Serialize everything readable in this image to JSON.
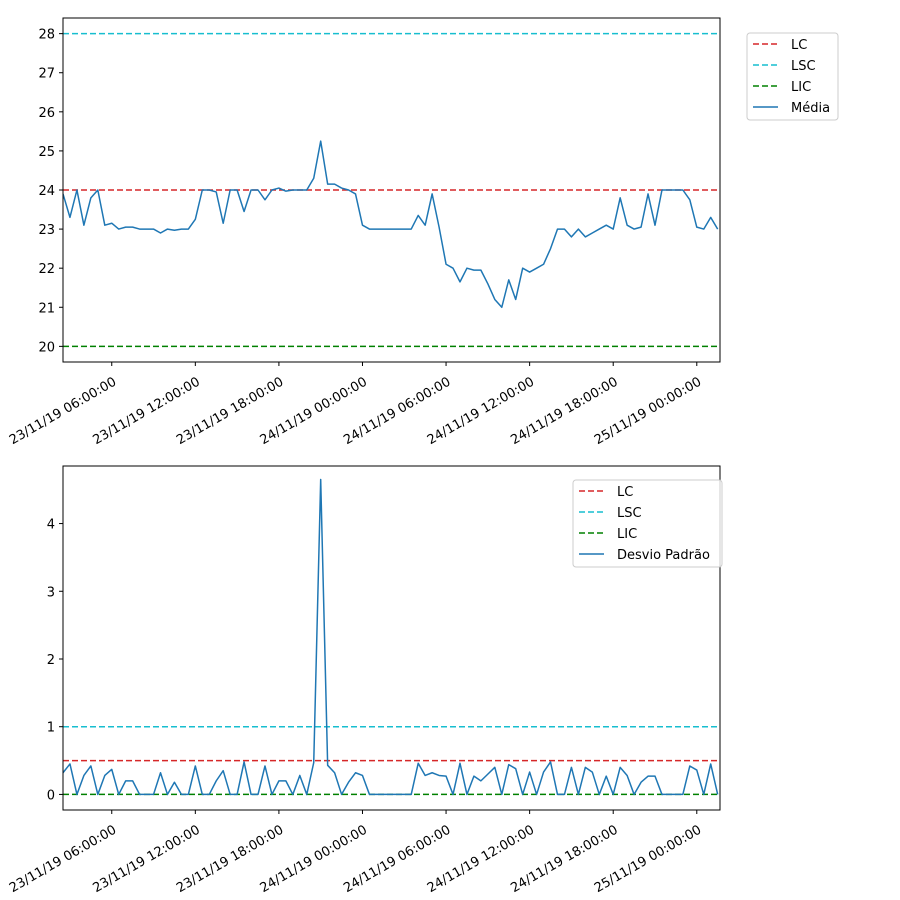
{
  "chart_data": [
    {
      "type": "line",
      "title": "",
      "xlabel": "",
      "ylabel": "",
      "x_range": [
        "23/11/19 02:30:00",
        "25/11/19 01:40:00"
      ],
      "ylim": [
        19.6,
        28.4
      ],
      "y_ticks": [
        20,
        21,
        22,
        23,
        24,
        25,
        26,
        27,
        28
      ],
      "x_tick_labels": [
        "23/11/19 06:00:00",
        "23/11/19 12:00:00",
        "23/11/19 18:00:00",
        "24/11/19 00:00:00",
        "24/11/19 06:00:00",
        "24/11/19 12:00:00",
        "24/11/19 18:00:00",
        "25/11/19 00:00:00"
      ],
      "legend_position": "outside-right-top",
      "hlines": [
        {
          "name": "LC",
          "value": 24,
          "color": "#d62728"
        },
        {
          "name": "LSC",
          "value": 28,
          "color": "#17becf"
        },
        {
          "name": "LIC",
          "value": 20,
          "color": "#008000"
        }
      ],
      "series": [
        {
          "name": "Média",
          "color": "#1f77b4",
          "x": [
            "23/11/19 02:30:00",
            "23/11/19 03:00:00",
            "23/11/19 03:30:00",
            "23/11/19 04:00:00",
            "23/11/19 04:30:00",
            "23/11/19 05:00:00",
            "23/11/19 05:30:00",
            "23/11/19 06:00:00",
            "23/11/19 06:30:00",
            "23/11/19 07:00:00",
            "23/11/19 07:30:00",
            "23/11/19 08:00:00",
            "23/11/19 08:30:00",
            "23/11/19 09:00:00",
            "23/11/19 09:30:00",
            "23/11/19 10:00:00",
            "23/11/19 10:30:00",
            "23/11/19 11:00:00",
            "23/11/19 11:30:00",
            "23/11/19 12:00:00",
            "23/11/19 12:30:00",
            "23/11/19 13:00:00",
            "23/11/19 13:30:00",
            "23/11/19 14:00:00",
            "23/11/19 14:30:00",
            "23/11/19 15:00:00",
            "23/11/19 15:30:00",
            "23/11/19 16:00:00",
            "23/11/19 16:30:00",
            "23/11/19 17:00:00",
            "23/11/19 17:30:00",
            "23/11/19 18:00:00",
            "23/11/19 18:30:00",
            "23/11/19 19:00:00",
            "23/11/19 19:30:00",
            "23/11/19 20:00:00",
            "23/11/19 20:30:00",
            "23/11/19 21:00:00",
            "23/11/19 21:30:00",
            "23/11/19 22:00:00",
            "23/11/19 22:30:00",
            "23/11/19 23:00:00",
            "23/11/19 23:30:00",
            "24/11/19 00:00:00",
            "24/11/19 00:30:00",
            "24/11/19 01:00:00",
            "24/11/19 01:30:00",
            "24/11/19 02:00:00",
            "24/11/19 02:30:00",
            "24/11/19 03:00:00",
            "24/11/19 03:30:00",
            "24/11/19 04:00:00",
            "24/11/19 04:30:00",
            "24/11/19 05:00:00",
            "24/11/19 05:30:00",
            "24/11/19 06:00:00",
            "24/11/19 06:30:00",
            "24/11/19 07:00:00",
            "24/11/19 07:30:00",
            "24/11/19 08:00:00",
            "24/11/19 08:30:00",
            "24/11/19 09:00:00",
            "24/11/19 09:30:00",
            "24/11/19 10:00:00",
            "24/11/19 10:30:00",
            "24/11/19 11:00:00",
            "24/11/19 11:30:00",
            "24/11/19 12:00:00",
            "24/11/19 12:30:00",
            "24/11/19 13:00:00",
            "24/11/19 13:30:00",
            "24/11/19 14:00:00",
            "24/11/19 14:30:00",
            "24/11/19 15:00:00",
            "24/11/19 15:30:00",
            "24/11/19 16:00:00",
            "24/11/19 16:30:00",
            "24/11/19 17:00:00",
            "24/11/19 17:30:00",
            "24/11/19 18:00:00",
            "24/11/19 18:30:00",
            "24/11/19 19:00:00",
            "24/11/19 19:30:00",
            "24/11/19 20:00:00",
            "24/11/19 20:30:00",
            "24/11/19 21:00:00",
            "24/11/19 21:30:00",
            "24/11/19 22:00:00",
            "24/11/19 22:30:00",
            "24/11/19 23:00:00",
            "24/11/19 23:30:00",
            "25/11/19 00:00:00",
            "25/11/19 00:30:00",
            "25/11/19 01:00:00",
            "25/11/19 01:30:00"
          ],
          "values": [
            23.9,
            23.3,
            24.0,
            23.1,
            23.8,
            24.0,
            23.1,
            23.15,
            23.0,
            23.05,
            23.05,
            23.0,
            23.0,
            23.0,
            22.9,
            23.0,
            22.97,
            23.0,
            23.0,
            23.25,
            24.0,
            24.0,
            23.95,
            23.15,
            24.0,
            24.0,
            23.45,
            24.0,
            24.0,
            23.75,
            24.0,
            24.05,
            23.97,
            24.0,
            24.0,
            24.0,
            24.3,
            25.25,
            24.15,
            24.15,
            24.05,
            24.0,
            23.9,
            23.1,
            23.0,
            23.0,
            23.0,
            23.0,
            23.0,
            23.0,
            23.0,
            23.35,
            23.1,
            23.9,
            23.05,
            22.1,
            22.0,
            21.65,
            22.0,
            21.95,
            21.95,
            21.6,
            21.2,
            21.0,
            21.7,
            21.2,
            22.0,
            21.9,
            22.0,
            22.1,
            22.5,
            23.0,
            23.0,
            22.8,
            23.0,
            22.8,
            22.9,
            23.0,
            23.1,
            23.0,
            23.8,
            23.1,
            23.0,
            23.05,
            23.9,
            23.1,
            24.0,
            24.0,
            24.0,
            24.0,
            23.75,
            23.05,
            23.0,
            23.3,
            23.0
          ]
        }
      ]
    },
    {
      "type": "line",
      "title": "",
      "xlabel": "",
      "ylabel": "",
      "x_range": [
        "23/11/19 02:30:00",
        "25/11/19 01:40:00"
      ],
      "ylim": [
        -0.23,
        4.85
      ],
      "y_ticks": [
        0,
        1,
        2,
        3,
        4
      ],
      "x_tick_labels": [
        "23/11/19 06:00:00",
        "23/11/19 12:00:00",
        "23/11/19 18:00:00",
        "24/11/19 00:00:00",
        "24/11/19 06:00:00",
        "24/11/19 12:00:00",
        "24/11/19 18:00:00",
        "25/11/19 00:00:00"
      ],
      "legend_position": "top-right",
      "hlines": [
        {
          "name": "LC",
          "value": 0.5,
          "color": "#d62728"
        },
        {
          "name": "LSC",
          "value": 1.0,
          "color": "#17becf"
        },
        {
          "name": "LIC",
          "value": 0.0,
          "color": "#008000"
        }
      ],
      "series": [
        {
          "name": "Desvio Padrão",
          "color": "#1f77b4",
          "x": [
            "23/11/19 02:30:00",
            "23/11/19 03:00:00",
            "23/11/19 03:30:00",
            "23/11/19 04:00:00",
            "23/11/19 04:30:00",
            "23/11/19 05:00:00",
            "23/11/19 05:30:00",
            "23/11/19 06:00:00",
            "23/11/19 06:30:00",
            "23/11/19 07:00:00",
            "23/11/19 07:30:00",
            "23/11/19 08:00:00",
            "23/11/19 08:30:00",
            "23/11/19 09:00:00",
            "23/11/19 09:30:00",
            "23/11/19 10:00:00",
            "23/11/19 10:30:00",
            "23/11/19 11:00:00",
            "23/11/19 11:30:00",
            "23/11/19 12:00:00",
            "23/11/19 12:30:00",
            "23/11/19 13:00:00",
            "23/11/19 13:30:00",
            "23/11/19 14:00:00",
            "23/11/19 14:30:00",
            "23/11/19 15:00:00",
            "23/11/19 15:30:00",
            "23/11/19 16:00:00",
            "23/11/19 16:30:00",
            "23/11/19 17:00:00",
            "23/11/19 17:30:00",
            "23/11/19 18:00:00",
            "23/11/19 18:30:00",
            "23/11/19 19:00:00",
            "23/11/19 19:30:00",
            "23/11/19 20:00:00",
            "23/11/19 20:30:00",
            "23/11/19 21:00:00",
            "23/11/19 21:30:00",
            "23/11/19 22:00:00",
            "23/11/19 22:30:00",
            "23/11/19 23:00:00",
            "23/11/19 23:30:00",
            "24/11/19 00:00:00",
            "24/11/19 00:30:00",
            "24/11/19 01:00:00",
            "24/11/19 01:30:00",
            "24/11/19 02:00:00",
            "24/11/19 02:30:00",
            "24/11/19 03:00:00",
            "24/11/19 03:30:00",
            "24/11/19 04:00:00",
            "24/11/19 04:30:00",
            "24/11/19 05:00:00",
            "24/11/19 05:30:00",
            "24/11/19 06:00:00",
            "24/11/19 06:30:00",
            "24/11/19 07:00:00",
            "24/11/19 07:30:00",
            "24/11/19 08:00:00",
            "24/11/19 08:30:00",
            "24/11/19 09:00:00",
            "24/11/19 09:30:00",
            "24/11/19 10:00:00",
            "24/11/19 10:30:00",
            "24/11/19 11:00:00",
            "24/11/19 11:30:00",
            "24/11/19 12:00:00",
            "24/11/19 12:30:00",
            "24/11/19 13:00:00",
            "24/11/19 13:30:00",
            "24/11/19 14:00:00",
            "24/11/19 14:30:00",
            "24/11/19 15:00:00",
            "24/11/19 15:30:00",
            "24/11/19 16:00:00",
            "24/11/19 16:30:00",
            "24/11/19 17:00:00",
            "24/11/19 17:30:00",
            "24/11/19 18:00:00",
            "24/11/19 18:30:00",
            "24/11/19 19:00:00",
            "24/11/19 19:30:00",
            "24/11/19 20:00:00",
            "24/11/19 20:30:00",
            "24/11/19 21:00:00",
            "24/11/19 21:30:00",
            "24/11/19 22:00:00",
            "24/11/19 22:30:00",
            "24/11/19 23:00:00",
            "24/11/19 23:30:00",
            "25/11/19 00:00:00",
            "25/11/19 00:30:00",
            "25/11/19 01:00:00",
            "25/11/19 01:30:00"
          ],
          "values": [
            0.32,
            0.45,
            0.0,
            0.28,
            0.42,
            0.0,
            0.28,
            0.37,
            0.0,
            0.2,
            0.2,
            0.0,
            0.0,
            0.0,
            0.32,
            0.0,
            0.18,
            0.0,
            0.0,
            0.42,
            0.0,
            0.0,
            0.2,
            0.35,
            0.0,
            0.0,
            0.48,
            0.0,
            0.0,
            0.42,
            0.0,
            0.2,
            0.2,
            0.0,
            0.28,
            0.0,
            0.47,
            4.65,
            0.43,
            0.32,
            0.0,
            0.18,
            0.32,
            0.28,
            0.0,
            0.0,
            0.0,
            0.0,
            0.0,
            0.0,
            0.0,
            0.46,
            0.28,
            0.32,
            0.28,
            0.27,
            0.0,
            0.46,
            0.0,
            0.27,
            0.2,
            0.3,
            0.4,
            0.0,
            0.44,
            0.38,
            0.0,
            0.33,
            0.0,
            0.33,
            0.48,
            0.0,
            0.0,
            0.4,
            0.0,
            0.4,
            0.33,
            0.0,
            0.27,
            0.0,
            0.4,
            0.28,
            0.0,
            0.18,
            0.27,
            0.27,
            0.0,
            0.0,
            0.0,
            0.0,
            0.42,
            0.36,
            0.0,
            0.45,
            0.0
          ]
        }
      ]
    }
  ]
}
